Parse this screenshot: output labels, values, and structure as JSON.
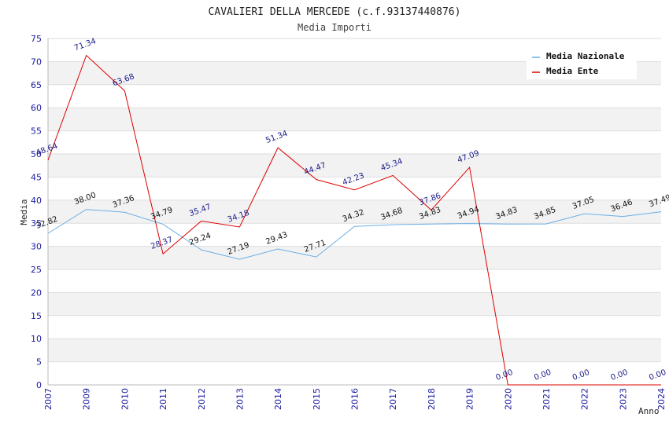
{
  "chart_data": {
    "type": "line",
    "title": "CAVALIERI DELLA MERCEDE (c.f.93137440876)",
    "subtitle": "Media Importi",
    "xlabel": "Anno",
    "ylabel": "Media",
    "ylim": [
      0,
      75
    ],
    "yticks": [
      "0",
      "5",
      "10",
      "15",
      "20",
      "25",
      "30",
      "35",
      "40",
      "45",
      "50",
      "55",
      "60",
      "65",
      "70",
      "75"
    ],
    "categories": [
      "2007",
      "2009",
      "2010",
      "2011",
      "2012",
      "2013",
      "2014",
      "2015",
      "2016",
      "2017",
      "2018",
      "2019",
      "2020",
      "2021",
      "2022",
      "2023",
      "2024"
    ],
    "series": [
      {
        "name": "Media Nazionale",
        "color": "#6aaee6",
        "values": [
          32.82,
          38.0,
          37.36,
          34.79,
          29.24,
          27.19,
          29.43,
          27.71,
          34.32,
          34.68,
          34.83,
          34.94,
          34.83,
          34.85,
          37.05,
          36.46,
          37.49
        ],
        "labels": [
          "32.82",
          "38.00",
          "37.36",
          "34.79",
          "29.24",
          "27.19",
          "29.43",
          "27.71",
          "34.32",
          "34.68",
          "34.83",
          "34.94",
          "34.83",
          "34.85",
          "37.05",
          "36.46",
          "37.49"
        ]
      },
      {
        "name": "Media Ente",
        "color": "#dd0000",
        "values": [
          48.64,
          71.34,
          63.68,
          28.37,
          35.47,
          34.18,
          51.34,
          44.47,
          42.23,
          45.34,
          37.86,
          47.09,
          0.0,
          0.0,
          0.0,
          0.0,
          0.0
        ],
        "labels": [
          "48.64",
          "71.34",
          "63.68",
          "28.37",
          "35.47",
          "34.18",
          "51.34",
          "44.47",
          "42.23",
          "45.34",
          "37.86",
          "47.09",
          "0.00",
          "0.00",
          "0.00",
          "0.00",
          "0.00"
        ]
      }
    ],
    "legend_position": "top-right",
    "grid": true
  }
}
